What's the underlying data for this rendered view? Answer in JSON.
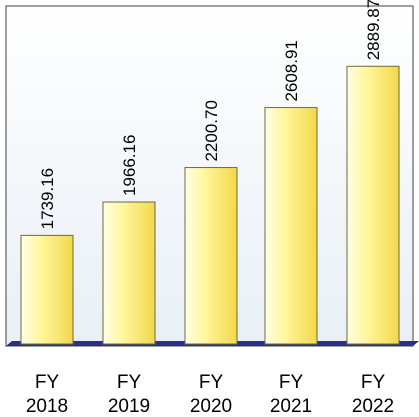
{
  "chart_data": {
    "type": "bar",
    "title": "",
    "xlabel": "",
    "ylabel": "",
    "categories": [
      [
        "FY",
        "2018"
      ],
      [
        "FY",
        "2019"
      ],
      [
        "FY",
        "2020"
      ],
      [
        "FY",
        "2021"
      ],
      [
        "FY",
        "2022"
      ]
    ],
    "series": [
      {
        "values": [
          1739.16,
          1966.16,
          2200.7,
          2608.91,
          2889.87
        ],
        "labels": [
          "1739.16",
          "1966.16",
          "2200.70",
          "2608.91",
          "2889.87"
        ]
      }
    ],
    "ylim": [
      1000,
      3300
    ],
    "grid": false,
    "legend": "none",
    "colors": {
      "bar_light": "#ffffe6",
      "bar_mid": "#fff59a",
      "bar_dark": "#f2d84a",
      "bar_edge": "#6b6b3a",
      "plot_bg_top": "#ffffff",
      "plot_bg_bottom": "#e8eff6",
      "frame": "#7f7f7f",
      "floor": "#2e2e8a",
      "text": "#000000"
    }
  }
}
